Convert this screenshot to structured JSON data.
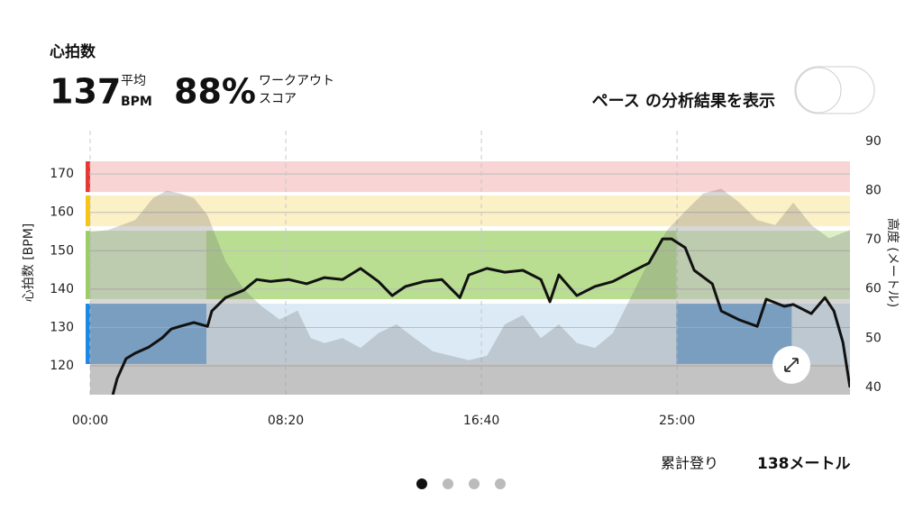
{
  "header": {
    "title": "心拍数",
    "avg_value": "137",
    "avg_label": "平均",
    "avg_unit": "BPM",
    "score_value": "88%",
    "score_label_1": "ワークアウト",
    "score_label_2": "スコア",
    "toggle_label": "ペース の分析結果を表示"
  },
  "chart_data": {
    "type": "line",
    "ylabel": "心拍数 [BPM]",
    "y2label": "高度 (メートル)",
    "xlim": [
      0,
      1942
    ],
    "xticks": [
      {
        "value": 0,
        "label": "00:00"
      },
      {
        "value": 500,
        "label": "08:20"
      },
      {
        "value": 1000,
        "label": "16:40"
      },
      {
        "value": 1500,
        "label": "25:00"
      }
    ],
    "ylim": [
      112.5,
      181.3
    ],
    "yticks": [
      120,
      130,
      140,
      150,
      160,
      170
    ],
    "y2lim": [
      38.5,
      92.2
    ],
    "y2ticks": [
      40,
      50,
      60,
      70,
      80,
      90
    ],
    "grid": true,
    "zones": [
      {
        "low": 165.3,
        "high": 173.3,
        "color": "#f8d4d4",
        "strong": "#f3b5b5",
        "edge": "#e53935"
      },
      {
        "low": 156.4,
        "high": 164.4,
        "color": "#fcf0c6",
        "strong": "#f8e39a",
        "edge": "#f5c518"
      },
      {
        "low": 137.4,
        "high": 155.2,
        "color": "#dcefc6",
        "strong": "#b9de92",
        "edge": "#9ccc65"
      },
      {
        "low": 120.5,
        "high": 136.2,
        "color": "#dbeaf5",
        "strong": "#7fb1e0",
        "edge": "#1e88e5"
      }
    ],
    "highlights": [
      {
        "zone": 3,
        "start": 0,
        "end": 297
      },
      {
        "zone": 2,
        "start": 297,
        "end": 1498
      },
      {
        "zone": 3,
        "start": 1498,
        "end": 1793
      }
    ],
    "series": [
      {
        "color": "rgba(110,110,110,0.28)",
        "axis": "y2",
        "x": [
          0,
          46,
          115,
          161,
          196,
          230,
          265,
          300,
          346,
          392,
          438,
          484,
          530,
          564,
          599,
          645,
          691,
          737,
          783,
          829,
          876,
          922,
          968,
          1014,
          1060,
          1106,
          1152,
          1198,
          1244,
          1290,
          1336,
          1382,
          1428,
          1475,
          1521,
          1567,
          1613,
          1659,
          1705,
          1751,
          1797,
          1843,
          1889,
          1942
        ],
        "values": [
          71.6,
          72,
          74,
          78.5,
          80,
          79.4,
          78.5,
          75,
          65.7,
          60,
          56.5,
          53.8,
          55.6,
          50,
          49,
          50,
          48,
          51,
          52.8,
          50,
          47.3,
          46.4,
          45.5,
          46.4,
          52.8,
          54.7,
          50,
          52.8,
          49,
          48,
          51,
          58.3,
          65.7,
          72,
          75.8,
          79.4,
          80.4,
          77.6,
          74,
          73,
          77.6,
          73,
          70.3,
          72
        ]
      },
      {
        "color": "#111111",
        "x": [
          58,
          69,
          92,
          115,
          150,
          184,
          207,
          230,
          265,
          300,
          311,
          346,
          392,
          426,
          461,
          507,
          553,
          599,
          645,
          691,
          737,
          772,
          806,
          853,
          899,
          945,
          968,
          1014,
          1060,
          1106,
          1152,
          1175,
          1198,
          1244,
          1290,
          1336,
          1382,
          1428,
          1463,
          1486,
          1521,
          1544,
          1590,
          1613,
          1659,
          1705,
          1728,
          1774,
          1797,
          1843,
          1878,
          1901,
          1924,
          1942
        ],
        "values": [
          112.5,
          116.7,
          121.9,
          123.3,
          124.9,
          127.3,
          129.6,
          130.3,
          131.3,
          130.3,
          134.3,
          137.8,
          139.7,
          142.5,
          142,
          142.5,
          141.4,
          143,
          142.5,
          145.4,
          142,
          138.3,
          140.7,
          142,
          142.5,
          137.8,
          143.7,
          145.4,
          144.4,
          144.9,
          142.5,
          136.7,
          143.7,
          138.3,
          140.7,
          142,
          144.4,
          146.8,
          153.1,
          153.1,
          150.8,
          144.9,
          141.4,
          134.3,
          132,
          130.3,
          137.4,
          135.5,
          136,
          133.6,
          137.8,
          134.3,
          126.1,
          114.4
        ]
      }
    ]
  },
  "footer": {
    "climb_label": "累計登り",
    "climb_value": "138メートル"
  }
}
